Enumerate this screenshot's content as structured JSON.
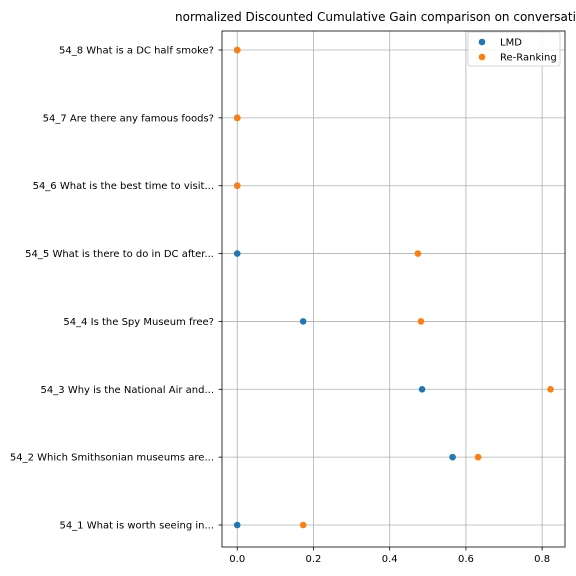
{
  "chart_data": {
    "type": "scatter",
    "title": "normalized Discounted Cumulative Gain comparison on conversatio",
    "xlabel": "",
    "ylabel": "",
    "xlim": [
      -0.04,
      0.86
    ],
    "x_ticks": [
      0.0,
      0.2,
      0.4,
      0.6,
      0.8
    ],
    "x_tick_labels": [
      "0.0",
      "0.2",
      "0.4",
      "0.6",
      "0.8"
    ],
    "grid": true,
    "legend_position": "top-right",
    "categories": [
      "54_1 What is worth seeing in...",
      "54_2 Which Smithsonian museums are...",
      "54_3 Why is the National Air and...",
      "54_4 Is the Spy Museum free?",
      "54_5 What is there to do in DC after...",
      "54_6 What is the best time to visit...",
      "54_7 Are there any famous foods?",
      "54_8 What is a DC half smoke?"
    ],
    "series": [
      {
        "name": "LMD",
        "color": "#1f77b4",
        "values": [
          0.0,
          0.565,
          0.485,
          0.173,
          0.0,
          0.0,
          0.0,
          0.0
        ]
      },
      {
        "name": "Re-Ranking",
        "color": "#ff7f0e",
        "values": [
          0.173,
          0.632,
          0.822,
          0.482,
          0.474,
          0.0,
          0.0,
          0.0
        ]
      }
    ]
  }
}
